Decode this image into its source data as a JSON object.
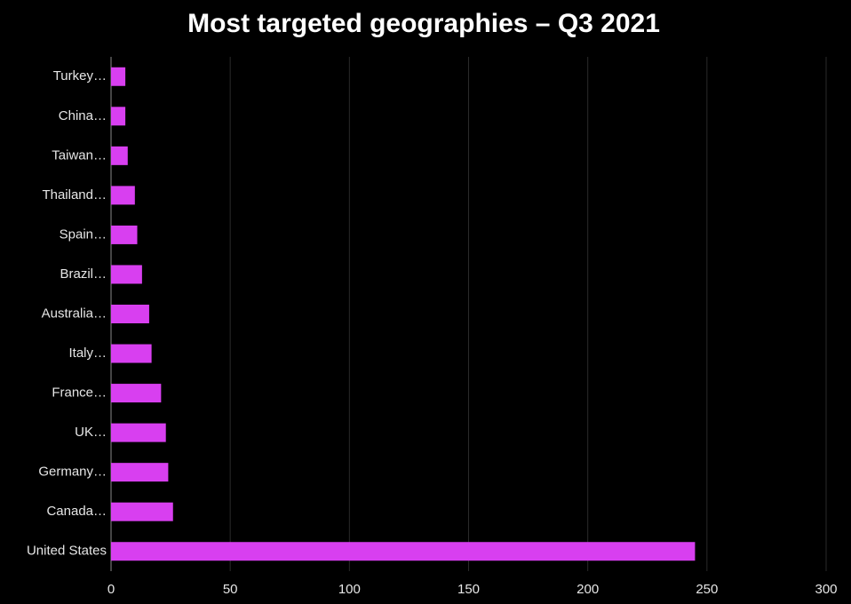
{
  "chart_data": {
    "type": "bar",
    "orientation": "horizontal",
    "title": "Most targeted geographies – Q3 2021",
    "categories": [
      "Turkey…",
      "China…",
      "Taiwan…",
      "Thailand…",
      "Spain…",
      "Brazil…",
      "Australia…",
      "Italy…",
      "France…",
      "UK…",
      "Germany…",
      "Canada…",
      "United States"
    ],
    "values": [
      6,
      6,
      7,
      10,
      11,
      13,
      16,
      17,
      21,
      23,
      24,
      26,
      245
    ],
    "color": "#d83ff0",
    "xlim": [
      0,
      300
    ],
    "xticks": [
      0,
      50,
      100,
      150,
      200,
      250,
      300
    ],
    "grid": true
  }
}
